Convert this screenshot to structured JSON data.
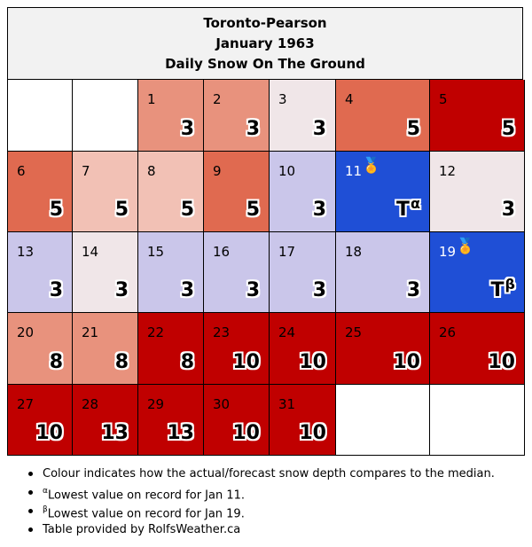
{
  "header": {
    "station": "Toronto-Pearson",
    "month": "January 1963",
    "subtitle": "Daily Snow On The Ground"
  },
  "colors": {
    "well_above": "#c00000",
    "above": "#e06a50",
    "somewhat_above": "#e8927d",
    "slightly_above": "#f2c1b5",
    "near_median": "#f0e6e8",
    "below": "#cac6ea",
    "record_low": "#1f4fd6",
    "empty": "#ffffff"
  },
  "calendar": {
    "cells": [
      {
        "day": "",
        "value": "",
        "tone": "empty"
      },
      {
        "day": "",
        "value": "",
        "tone": "empty"
      },
      {
        "day": "1",
        "value": "3",
        "tone": "somewhat_above"
      },
      {
        "day": "2",
        "value": "3",
        "tone": "somewhat_above"
      },
      {
        "day": "3",
        "value": "3",
        "tone": "near_median"
      },
      {
        "day": "4",
        "value": "5",
        "tone": "above"
      },
      {
        "day": "5",
        "value": "5",
        "tone": "well_above"
      },
      {
        "day": "6",
        "value": "5",
        "tone": "above"
      },
      {
        "day": "7",
        "value": "5",
        "tone": "slightly_above"
      },
      {
        "day": "8",
        "value": "5",
        "tone": "slightly_above"
      },
      {
        "day": "9",
        "value": "5",
        "tone": "above"
      },
      {
        "day": "10",
        "value": "3",
        "tone": "below"
      },
      {
        "day": "11",
        "value": "T",
        "sup": "α",
        "medal": "🏅",
        "tone": "record_low"
      },
      {
        "day": "12",
        "value": "3",
        "tone": "near_median"
      },
      {
        "day": "13",
        "value": "3",
        "tone": "below"
      },
      {
        "day": "14",
        "value": "3",
        "tone": "near_median"
      },
      {
        "day": "15",
        "value": "3",
        "tone": "below"
      },
      {
        "day": "16",
        "value": "3",
        "tone": "below"
      },
      {
        "day": "17",
        "value": "3",
        "tone": "below"
      },
      {
        "day": "18",
        "value": "3",
        "tone": "below"
      },
      {
        "day": "19",
        "value": "T",
        "sup": "β",
        "medal": "🏅",
        "tone": "record_low"
      },
      {
        "day": "20",
        "value": "8",
        "tone": "somewhat_above"
      },
      {
        "day": "21",
        "value": "8",
        "tone": "somewhat_above"
      },
      {
        "day": "22",
        "value": "8",
        "tone": "well_above"
      },
      {
        "day": "23",
        "value": "10",
        "tone": "well_above"
      },
      {
        "day": "24",
        "value": "10",
        "tone": "well_above"
      },
      {
        "day": "25",
        "value": "10",
        "tone": "well_above"
      },
      {
        "day": "26",
        "value": "10",
        "tone": "well_above"
      },
      {
        "day": "27",
        "value": "10",
        "tone": "well_above"
      },
      {
        "day": "28",
        "value": "13",
        "tone": "well_above"
      },
      {
        "day": "29",
        "value": "13",
        "tone": "well_above"
      },
      {
        "day": "30",
        "value": "10",
        "tone": "well_above"
      },
      {
        "day": "31",
        "value": "10",
        "tone": "well_above"
      },
      {
        "day": "",
        "value": "",
        "tone": "empty"
      },
      {
        "day": "",
        "value": "",
        "tone": "empty"
      }
    ]
  },
  "notes": [
    {
      "sup": "",
      "text": "Colour indicates how the actual/forecast snow depth compares to the median."
    },
    {
      "sup": "α",
      "text": "Lowest value on record for Jan 11."
    },
    {
      "sup": "β",
      "text": "Lowest value on record for Jan 19."
    },
    {
      "sup": "",
      "text": "Table provided by RolfsWeather.ca"
    }
  ]
}
